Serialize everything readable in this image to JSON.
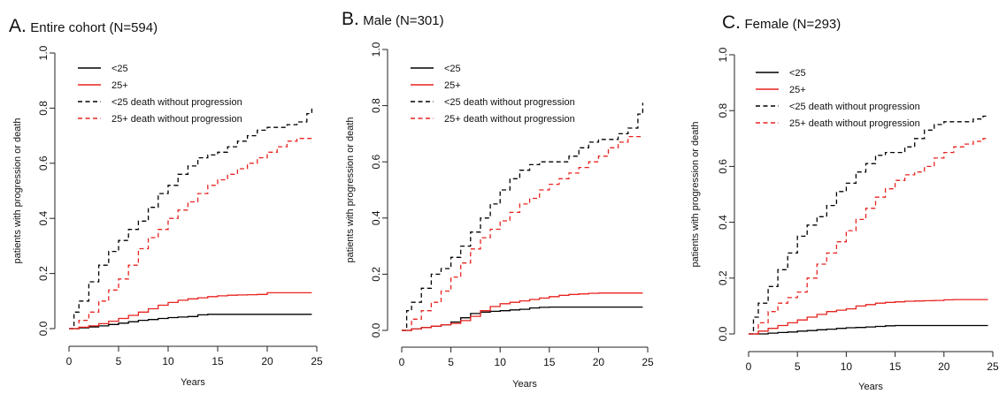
{
  "chart_data": [
    {
      "type": "line",
      "title_letter": "A.",
      "title": "Entire cohort (N=594)",
      "xlabel": "Years",
      "ylabel": "patients with progression or death",
      "xlim": [
        0,
        25
      ],
      "ylim": [
        0,
        1
      ],
      "xticks": [
        0,
        5,
        10,
        15,
        20,
        25
      ],
      "yticks": [
        "0.0",
        "0.2",
        "0.4",
        "0.6",
        "0.8",
        "1.0"
      ],
      "legend_position": "top-left",
      "series": [
        {
          "name": "<25",
          "color": "#000000",
          "dash": "solid",
          "x": [
            0,
            1,
            2,
            3,
            4,
            5,
            6,
            7,
            8,
            9,
            10,
            11,
            12,
            13,
            14,
            15,
            16,
            17,
            18,
            19,
            20,
            21,
            22,
            23,
            24.5
          ],
          "y": [
            0,
            0.003,
            0.006,
            0.01,
            0.015,
            0.02,
            0.025,
            0.03,
            0.033,
            0.037,
            0.04,
            0.042,
            0.044,
            0.05,
            0.052,
            0.052,
            0.052,
            0.052,
            0.052,
            0.052,
            0.052,
            0.052,
            0.052,
            0.052,
            0.052
          ]
        },
        {
          "name": "25+",
          "color": "#e8231f",
          "dash": "solid",
          "x": [
            0,
            1,
            2,
            3,
            4,
            5,
            6,
            7,
            8,
            9,
            10,
            11,
            12,
            13,
            14,
            15,
            16,
            17,
            18,
            19,
            20,
            21,
            22,
            23,
            24.5
          ],
          "y": [
            0,
            0.005,
            0.01,
            0.018,
            0.027,
            0.037,
            0.048,
            0.06,
            0.072,
            0.085,
            0.095,
            0.103,
            0.108,
            0.112,
            0.116,
            0.119,
            0.121,
            0.122,
            0.123,
            0.124,
            0.13,
            0.13,
            0.13,
            0.13,
            0.13
          ]
        },
        {
          "name": "<25 death without progression",
          "color": "#000000",
          "dash": "dashed",
          "x": [
            0,
            0.5,
            1,
            2,
            3,
            4,
            5,
            6,
            7,
            8,
            9,
            10,
            11,
            12,
            13,
            14,
            15,
            16,
            17,
            18,
            19,
            20,
            21,
            22,
            23,
            24,
            24.5
          ],
          "y": [
            0,
            0.06,
            0.1,
            0.17,
            0.23,
            0.28,
            0.32,
            0.36,
            0.39,
            0.44,
            0.49,
            0.52,
            0.56,
            0.59,
            0.62,
            0.63,
            0.64,
            0.66,
            0.68,
            0.7,
            0.72,
            0.73,
            0.73,
            0.74,
            0.75,
            0.78,
            0.8
          ]
        },
        {
          "name": "25+ death without progression",
          "color": "#e8231f",
          "dash": "dashed",
          "x": [
            0,
            1,
            2,
            3,
            4,
            5,
            6,
            7,
            8,
            9,
            10,
            11,
            12,
            13,
            14,
            15,
            16,
            17,
            18,
            19,
            20,
            21,
            22,
            23,
            24,
            24.5
          ],
          "y": [
            0,
            0.03,
            0.06,
            0.1,
            0.14,
            0.18,
            0.23,
            0.29,
            0.33,
            0.36,
            0.4,
            0.43,
            0.46,
            0.49,
            0.52,
            0.54,
            0.56,
            0.58,
            0.6,
            0.62,
            0.64,
            0.66,
            0.68,
            0.69,
            0.69,
            0.69
          ]
        }
      ]
    },
    {
      "type": "line",
      "title_letter": "B.",
      "title": "Male (N=301)",
      "xlabel": "Years",
      "ylabel": "patients with progression or death",
      "xlim": [
        0,
        25
      ],
      "ylim": [
        0,
        1
      ],
      "xticks": [
        0,
        5,
        10,
        15,
        20,
        25
      ],
      "yticks": [
        "0.0",
        "0.2",
        "0.4",
        "0.6",
        "0.8",
        "1.0"
      ],
      "legend_position": "top-left",
      "series": [
        {
          "name": "<25",
          "color": "#000000",
          "dash": "solid",
          "x": [
            0,
            1,
            2,
            3,
            4,
            5,
            6,
            7,
            8,
            9,
            10,
            11,
            12,
            13,
            14,
            15,
            16,
            17,
            18,
            19,
            20,
            21,
            22,
            23,
            24.5
          ],
          "y": [
            0,
            0.005,
            0.01,
            0.015,
            0.02,
            0.03,
            0.045,
            0.06,
            0.065,
            0.068,
            0.07,
            0.073,
            0.075,
            0.08,
            0.082,
            0.083,
            0.083,
            0.083,
            0.083,
            0.083,
            0.083,
            0.083,
            0.083,
            0.083,
            0.083
          ]
        },
        {
          "name": "25+",
          "color": "#e8231f",
          "dash": "solid",
          "x": [
            0,
            1,
            2,
            3,
            4,
            5,
            6,
            7,
            8,
            9,
            10,
            11,
            12,
            13,
            14,
            15,
            16,
            17,
            18,
            19,
            20,
            21,
            22,
            23,
            24.5
          ],
          "y": [
            0,
            0.005,
            0.01,
            0.015,
            0.02,
            0.025,
            0.035,
            0.05,
            0.07,
            0.085,
            0.095,
            0.1,
            0.105,
            0.11,
            0.115,
            0.12,
            0.125,
            0.128,
            0.13,
            0.132,
            0.133,
            0.133,
            0.133,
            0.133,
            0.133
          ]
        },
        {
          "name": "<25 death without progression",
          "color": "#000000",
          "dash": "dashed",
          "x": [
            0,
            0.5,
            1,
            2,
            3,
            4,
            5,
            6,
            7,
            8,
            9,
            10,
            11,
            12,
            13,
            14,
            15,
            16,
            17,
            18,
            19,
            20,
            21,
            22,
            23,
            24,
            24.5
          ],
          "y": [
            0,
            0.07,
            0.1,
            0.15,
            0.2,
            0.22,
            0.26,
            0.3,
            0.35,
            0.4,
            0.45,
            0.5,
            0.54,
            0.57,
            0.59,
            0.6,
            0.6,
            0.6,
            0.62,
            0.65,
            0.67,
            0.68,
            0.68,
            0.7,
            0.72,
            0.77,
            0.81
          ]
        },
        {
          "name": "25+ death without progression",
          "color": "#e8231f",
          "dash": "dashed",
          "x": [
            0,
            1,
            2,
            3,
            4,
            5,
            6,
            7,
            8,
            9,
            10,
            11,
            12,
            13,
            14,
            15,
            16,
            17,
            18,
            19,
            20,
            21,
            22,
            23,
            24,
            24.5
          ],
          "y": [
            0,
            0.04,
            0.07,
            0.1,
            0.14,
            0.19,
            0.24,
            0.29,
            0.33,
            0.36,
            0.39,
            0.42,
            0.45,
            0.47,
            0.5,
            0.52,
            0.54,
            0.56,
            0.58,
            0.6,
            0.62,
            0.65,
            0.67,
            0.69,
            0.69,
            0.69
          ]
        }
      ]
    },
    {
      "type": "line",
      "title_letter": "C.",
      "title": "Female (N=293)",
      "xlabel": "Years",
      "ylabel": "patients with progression or death",
      "xlim": [
        0,
        25
      ],
      "ylim": [
        0,
        1
      ],
      "xticks": [
        0,
        5,
        10,
        15,
        20,
        25
      ],
      "yticks": [
        "0.0",
        "0.2",
        "0.4",
        "0.6",
        "0.8",
        "1.0"
      ],
      "legend_position": "top-left",
      "series": [
        {
          "name": "<25",
          "color": "#000000",
          "dash": "solid",
          "x": [
            0,
            1,
            2,
            3,
            4,
            5,
            6,
            7,
            8,
            9,
            10,
            11,
            12,
            13,
            14,
            15,
            16,
            17,
            18,
            19,
            20,
            21,
            22,
            23,
            24.5
          ],
          "y": [
            0,
            0,
            0.003,
            0.005,
            0.007,
            0.01,
            0.012,
            0.015,
            0.017,
            0.02,
            0.022,
            0.023,
            0.025,
            0.027,
            0.029,
            0.03,
            0.03,
            0.03,
            0.03,
            0.03,
            0.03,
            0.03,
            0.03,
            0.03,
            0.03
          ]
        },
        {
          "name": "25+",
          "color": "#e8231f",
          "dash": "solid",
          "x": [
            0,
            1,
            2,
            3,
            4,
            5,
            6,
            7,
            8,
            9,
            10,
            11,
            12,
            13,
            14,
            15,
            16,
            17,
            18,
            19,
            20,
            21,
            22,
            23,
            24.5
          ],
          "y": [
            0,
            0.01,
            0.02,
            0.03,
            0.04,
            0.05,
            0.06,
            0.07,
            0.08,
            0.085,
            0.09,
            0.1,
            0.105,
            0.11,
            0.113,
            0.115,
            0.117,
            0.118,
            0.119,
            0.12,
            0.122,
            0.123,
            0.123,
            0.123,
            0.123
          ]
        },
        {
          "name": "<25 death without progression",
          "color": "#000000",
          "dash": "dashed",
          "x": [
            0,
            0.5,
            1,
            2,
            3,
            4,
            5,
            6,
            7,
            8,
            9,
            10,
            11,
            12,
            13,
            14,
            15,
            16,
            17,
            18,
            19,
            20,
            21,
            22,
            23,
            24,
            24.5
          ],
          "y": [
            0,
            0.06,
            0.11,
            0.17,
            0.23,
            0.29,
            0.35,
            0.39,
            0.42,
            0.46,
            0.51,
            0.54,
            0.58,
            0.61,
            0.64,
            0.65,
            0.65,
            0.67,
            0.7,
            0.73,
            0.75,
            0.76,
            0.76,
            0.76,
            0.77,
            0.78,
            0.78
          ]
        },
        {
          "name": "25+ death without progression",
          "color": "#e8231f",
          "dash": "dashed",
          "x": [
            0,
            1,
            2,
            3,
            4,
            5,
            6,
            7,
            8,
            9,
            10,
            11,
            12,
            13,
            14,
            15,
            16,
            17,
            18,
            19,
            20,
            21,
            22,
            23,
            24,
            24.5
          ],
          "y": [
            0,
            0.04,
            0.08,
            0.11,
            0.13,
            0.15,
            0.2,
            0.25,
            0.29,
            0.33,
            0.37,
            0.41,
            0.45,
            0.49,
            0.52,
            0.55,
            0.57,
            0.58,
            0.6,
            0.63,
            0.65,
            0.67,
            0.68,
            0.69,
            0.7,
            0.7
          ]
        }
      ]
    }
  ]
}
